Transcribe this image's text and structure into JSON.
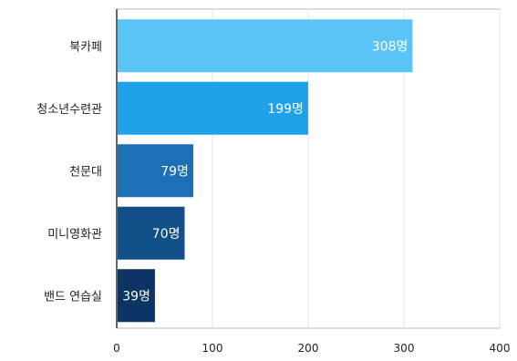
{
  "chart_data": {
    "type": "bar",
    "orientation": "horizontal",
    "categories": [
      "북카페",
      "청소년수련관",
      "천문대",
      "미니영화관",
      "밴드 연습실"
    ],
    "values": [
      308,
      199,
      79,
      70,
      39
    ],
    "data_labels": [
      "308명",
      "199명",
      "79명",
      "70명",
      "39명"
    ],
    "bar_colors": [
      "#5bc4f7",
      "#1fa2ea",
      "#1d6fb6",
      "#12508a",
      "#0c3464"
    ],
    "xlim": [
      0,
      400
    ],
    "x_ticks": [
      0,
      100,
      200,
      300,
      400
    ],
    "x_tick_labels": [
      "0",
      "100",
      "200",
      "300",
      "400"
    ],
    "grid": true,
    "title": "",
    "xlabel": "",
    "ylabel": ""
  }
}
